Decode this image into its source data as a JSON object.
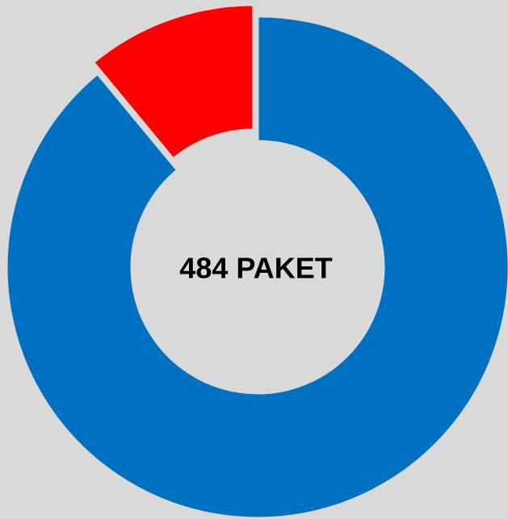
{
  "chart_data": {
    "type": "donut",
    "center_label": "484 PAKET",
    "categories": [
      null,
      null
    ],
    "values": [
      89,
      11
    ],
    "colors": [
      "#0070c0",
      "#ff0000"
    ]
  }
}
